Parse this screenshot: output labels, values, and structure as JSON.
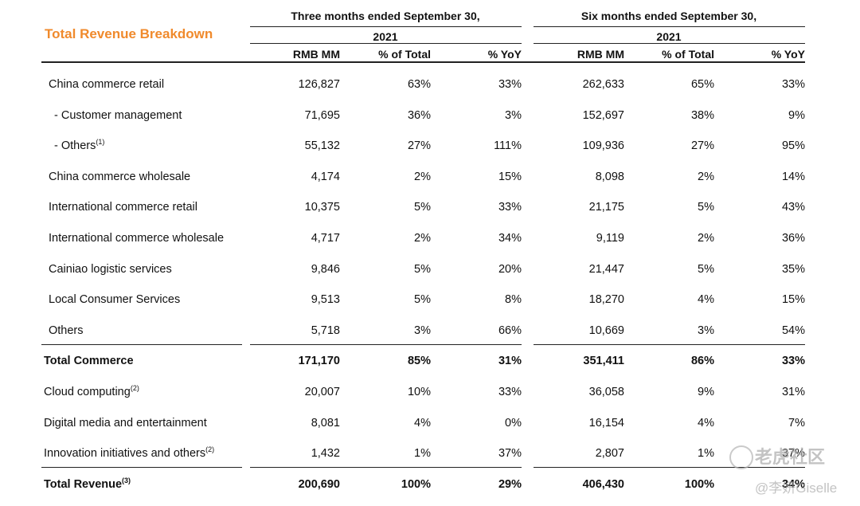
{
  "title": "Total Revenue Breakdown",
  "periods": [
    {
      "line1": "Three months ended September 30,",
      "year": "2021"
    },
    {
      "line1": "Six months ended September 30,",
      "year": "2021"
    }
  ],
  "columns": [
    "RMB MM",
    "% of Total",
    "% YoY",
    "RMB MM",
    "% of Total",
    "% YoY"
  ],
  "rows": [
    {
      "label": "China commerce retail",
      "note": "",
      "bold": false,
      "underline": false,
      "values": [
        "126,827",
        "63%",
        "33%",
        "262,633",
        "65%",
        "33%"
      ]
    },
    {
      "label": "- Customer management",
      "note": "",
      "bold": false,
      "underline": false,
      "values": [
        "71,695",
        "36%",
        "3%",
        "152,697",
        "38%",
        "9%"
      ]
    },
    {
      "label": "- Others",
      "note": "(1)",
      "bold": false,
      "underline": false,
      "values": [
        "55,132",
        "27%",
        "111%",
        "109,936",
        "27%",
        "95%"
      ]
    },
    {
      "label": "China commerce wholesale",
      "note": "",
      "bold": false,
      "underline": false,
      "values": [
        "4,174",
        "2%",
        "15%",
        "8,098",
        "2%",
        "14%"
      ]
    },
    {
      "label": "International commerce retail",
      "note": "",
      "bold": false,
      "underline": false,
      "values": [
        "10,375",
        "5%",
        "33%",
        "21,175",
        "5%",
        "43%"
      ]
    },
    {
      "label": "International commerce wholesale",
      "note": "",
      "bold": false,
      "underline": false,
      "values": [
        "4,717",
        "2%",
        "34%",
        "9,119",
        "2%",
        "36%"
      ]
    },
    {
      "label": "Cainiao logistic services",
      "note": "",
      "bold": false,
      "underline": false,
      "values": [
        "9,846",
        "5%",
        "20%",
        "21,447",
        "5%",
        "35%"
      ]
    },
    {
      "label": "Local Consumer Services",
      "note": "",
      "bold": false,
      "underline": false,
      "values": [
        "9,513",
        "5%",
        "8%",
        "18,270",
        "4%",
        "15%"
      ]
    },
    {
      "label": "Others",
      "note": "",
      "bold": false,
      "underline": true,
      "values": [
        "5,718",
        "3%",
        "66%",
        "10,669",
        "3%",
        "54%"
      ]
    },
    {
      "label": "Total Commerce",
      "note": "",
      "bold": true,
      "underline": false,
      "values": [
        "171,170",
        "85%",
        "31%",
        "351,411",
        "86%",
        "33%"
      ]
    },
    {
      "label": "Cloud computing",
      "note": "(2)",
      "bold": false,
      "underline": false,
      "values": [
        "20,007",
        "10%",
        "33%",
        "36,058",
        "9%",
        "31%"
      ]
    },
    {
      "label": "Digital media and entertainment",
      "note": "",
      "bold": false,
      "underline": false,
      "values": [
        "8,081",
        "4%",
        "0%",
        "16,154",
        "4%",
        "7%"
      ]
    },
    {
      "label": "Innovation initiatives and others",
      "note": "(2)",
      "bold": false,
      "underline": true,
      "values": [
        "1,432",
        "1%",
        "37%",
        "2,807",
        "1%",
        "37%"
      ]
    },
    {
      "label": "Total Revenue",
      "note": "(3)",
      "bold": true,
      "underline": false,
      "values": [
        "200,690",
        "100%",
        "29%",
        "406,430",
        "100%",
        "34%"
      ]
    }
  ],
  "watermark": {
    "line1": "老虎社区",
    "line2": "@李妍Giselle"
  }
}
